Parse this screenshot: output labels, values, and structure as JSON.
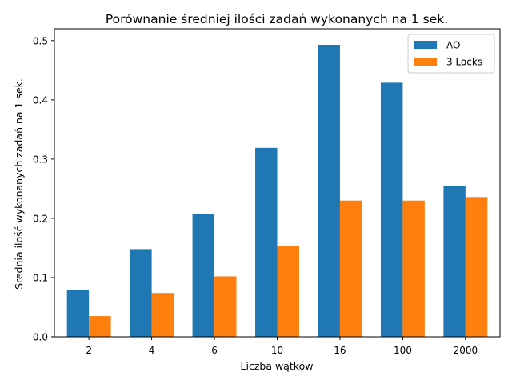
{
  "chart_data": {
    "type": "bar",
    "title": "Porównanie średniej ilości zadań wykonanych na 1 sek.",
    "xlabel": "Liczba wątków",
    "ylabel": "Średnia ilość wykonanych zadań na 1 sek.",
    "categories": [
      "2",
      "4",
      "6",
      "10",
      "16",
      "100",
      "2000"
    ],
    "series": [
      {
        "name": "AO",
        "color": "#1f77b4",
        "values": [
          0.079,
          0.148,
          0.208,
          0.319,
          0.493,
          0.429,
          0.255
        ]
      },
      {
        "name": "3 Locks",
        "color": "#ff7f0e",
        "values": [
          0.035,
          0.074,
          0.102,
          0.153,
          0.23,
          0.23,
          0.236
        ]
      }
    ],
    "ylim": [
      0,
      0.52
    ],
    "yticks": [
      0.0,
      0.1,
      0.2,
      0.3,
      0.4,
      0.5
    ],
    "ytick_labels": [
      "0.0",
      "0.1",
      "0.2",
      "0.3",
      "0.4",
      "0.5"
    ],
    "grid": false,
    "legend_position": "top-right"
  }
}
